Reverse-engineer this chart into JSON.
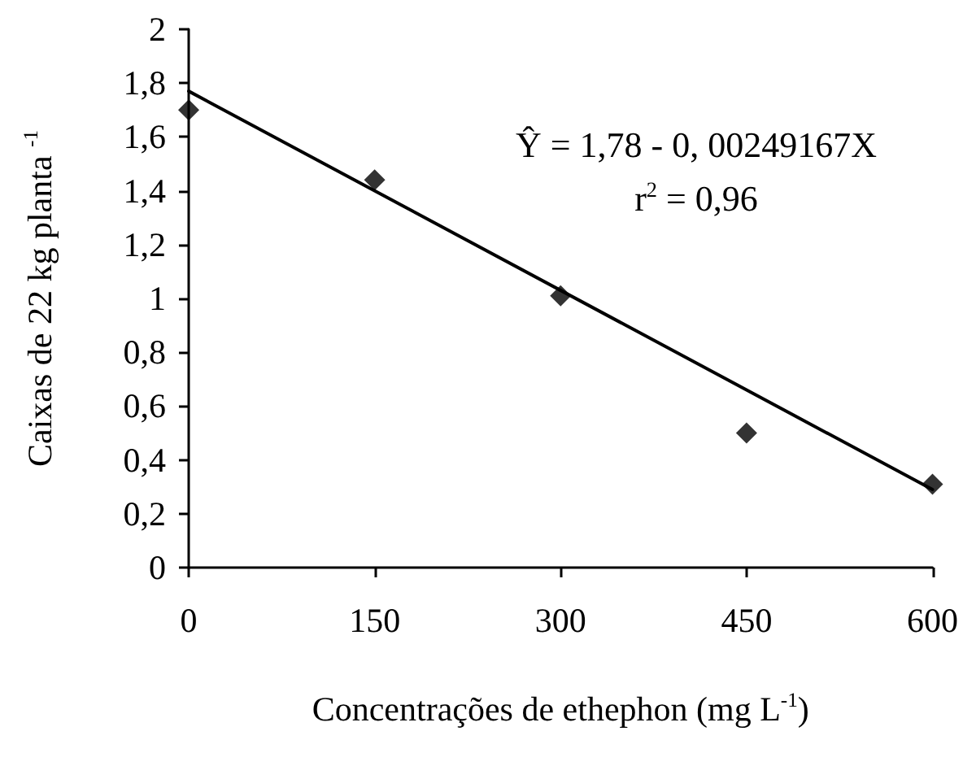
{
  "chart_data": {
    "type": "scatter",
    "xlabel": "Concentrações de ethephon (mg L$^{-1}$)",
    "ylabel": "Caixas de 22 kg planta $^{-1}$",
    "x": [
      0,
      150,
      300,
      450,
      600
    ],
    "series": [
      {
        "color": "#000000",
        "marker": "diamond",
        "values": [
          1.7,
          1.44,
          1.01,
          0.5,
          0.31
        ]
      },
      {
        "type": "line",
        "color": "#000000",
        "marker": "none",
        "line_style": "solid",
        "x": [
          0,
          600
        ],
        "values": [
          1.77,
          0.29
        ]
      }
    ],
    "annotations": [
      "Ŷ = 1,78 - 0, 00249167X",
      "r$^{2}$ = 0,96"
    ],
    "xlim": [
      0,
      600
    ],
    "xticks": [
      0,
      150,
      300,
      450,
      600
    ],
    "ylim": [
      0,
      2
    ],
    "yticks": [
      0,
      {
        "value": 0.2,
        "label": "0,2"
      },
      {
        "value": 0.4,
        "label": "0,4"
      },
      {
        "value": 0.6,
        "label": "0,6"
      },
      {
        "value": 0.8,
        "label": "0,8"
      },
      1,
      {
        "value": 1.2,
        "label": "1,2"
      },
      {
        "value": 1.4,
        "label": "1,4"
      },
      {
        "value": 1.6,
        "label": "1,6"
      },
      {
        "value": 1.8,
        "label": "1,8"
      },
      2
    ],
    "grid": false
  }
}
